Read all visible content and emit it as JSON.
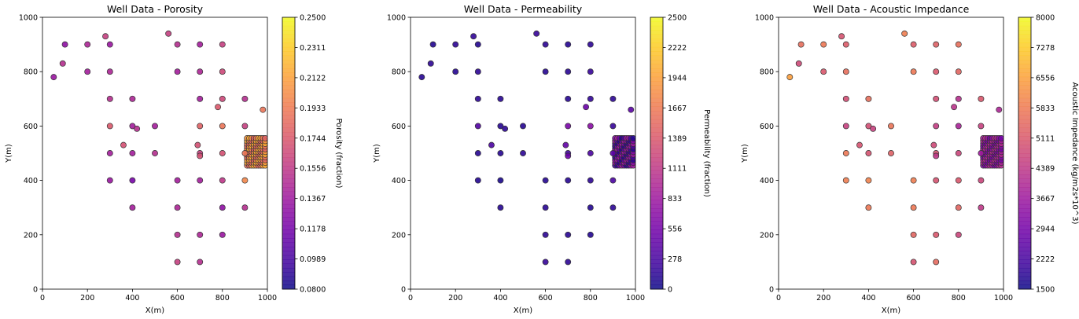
{
  "chart_data": [
    {
      "type": "scatter",
      "title": "Well Data - Porosity",
      "xlabel": "X(m)",
      "ylabel": "Y(m)",
      "xlim": [
        0,
        1000
      ],
      "ylim": [
        0,
        1000
      ],
      "xticks": [
        "0",
        "200",
        "400",
        "600",
        "800",
        "1000"
      ],
      "yticks": [
        "0",
        "200",
        "400",
        "600",
        "800",
        "1000"
      ],
      "colorbar": {
        "label": "Porosity (fraction)",
        "range": [
          0.08,
          0.25
        ],
        "ticks": [
          "0.0800",
          "0.0989",
          "0.1178",
          "0.1367",
          "0.1556",
          "0.1744",
          "0.1933",
          "0.2122",
          "0.2311",
          "0.2500"
        ],
        "colormap": "plasma"
      },
      "grid": false,
      "points": [
        {
          "x": 50,
          "y": 780,
          "c": 0.135
        },
        {
          "x": 90,
          "y": 830,
          "c": 0.15
        },
        {
          "x": 100,
          "y": 900,
          "c": 0.13
        },
        {
          "x": 200,
          "y": 900,
          "c": 0.145
        },
        {
          "x": 200,
          "y": 800,
          "c": 0.14
        },
        {
          "x": 280,
          "y": 930,
          "c": 0.16
        },
        {
          "x": 300,
          "y": 900,
          "c": 0.135
        },
        {
          "x": 300,
          "y": 800,
          "c": 0.145
        },
        {
          "x": 300,
          "y": 700,
          "c": 0.15
        },
        {
          "x": 300,
          "y": 600,
          "c": 0.175
        },
        {
          "x": 300,
          "y": 500,
          "c": 0.14
        },
        {
          "x": 300,
          "y": 400,
          "c": 0.135
        },
        {
          "x": 400,
          "y": 700,
          "c": 0.145
        },
        {
          "x": 400,
          "y": 600,
          "c": 0.14
        },
        {
          "x": 400,
          "y": 500,
          "c": 0.14
        },
        {
          "x": 400,
          "y": 400,
          "c": 0.12
        },
        {
          "x": 400,
          "y": 300,
          "c": 0.14
        },
        {
          "x": 420,
          "y": 590,
          "c": 0.15
        },
        {
          "x": 360,
          "y": 530,
          "c": 0.17
        },
        {
          "x": 500,
          "y": 600,
          "c": 0.14
        },
        {
          "x": 500,
          "y": 500,
          "c": 0.15
        },
        {
          "x": 560,
          "y": 940,
          "c": 0.16
        },
        {
          "x": 600,
          "y": 900,
          "c": 0.15
        },
        {
          "x": 600,
          "y": 800,
          "c": 0.14
        },
        {
          "x": 600,
          "y": 400,
          "c": 0.14
        },
        {
          "x": 600,
          "y": 300,
          "c": 0.145
        },
        {
          "x": 600,
          "y": 200,
          "c": 0.15
        },
        {
          "x": 600,
          "y": 100,
          "c": 0.16
        },
        {
          "x": 700,
          "y": 900,
          "c": 0.14
        },
        {
          "x": 700,
          "y": 800,
          "c": 0.145
        },
        {
          "x": 700,
          "y": 700,
          "c": 0.14
        },
        {
          "x": 700,
          "y": 600,
          "c": 0.18
        },
        {
          "x": 700,
          "y": 500,
          "c": 0.16
        },
        {
          "x": 700,
          "y": 490,
          "c": 0.17
        },
        {
          "x": 690,
          "y": 530,
          "c": 0.17
        },
        {
          "x": 700,
          "y": 400,
          "c": 0.14
        },
        {
          "x": 700,
          "y": 200,
          "c": 0.145
        },
        {
          "x": 700,
          "y": 100,
          "c": 0.15
        },
        {
          "x": 780,
          "y": 670,
          "c": 0.175
        },
        {
          "x": 800,
          "y": 900,
          "c": 0.16
        },
        {
          "x": 800,
          "y": 800,
          "c": 0.165
        },
        {
          "x": 800,
          "y": 700,
          "c": 0.165
        },
        {
          "x": 800,
          "y": 600,
          "c": 0.19
        },
        {
          "x": 800,
          "y": 500,
          "c": 0.17
        },
        {
          "x": 800,
          "y": 400,
          "c": 0.155
        },
        {
          "x": 800,
          "y": 300,
          "c": 0.13
        },
        {
          "x": 800,
          "y": 200,
          "c": 0.135
        },
        {
          "x": 900,
          "y": 700,
          "c": 0.15
        },
        {
          "x": 900,
          "y": 600,
          "c": 0.16
        },
        {
          "x": 900,
          "y": 500,
          "c": 0.19
        },
        {
          "x": 900,
          "y": 400,
          "c": 0.2
        },
        {
          "x": 900,
          "y": 300,
          "c": 0.15
        },
        {
          "x": 980,
          "y": 660,
          "c": 0.19
        }
      ],
      "grid_block": {
        "x_range": [
          910,
          990
        ],
        "y_range": [
          455,
          560
        ],
        "step": 10,
        "c_range": [
          0.18,
          0.22
        ]
      }
    },
    {
      "type": "scatter",
      "title": "Well Data - Permeability",
      "xlabel": "X(m)",
      "ylabel": "Y(m)",
      "xlim": [
        0,
        1000
      ],
      "ylim": [
        0,
        1000
      ],
      "xticks": [
        "0",
        "200",
        "400",
        "600",
        "800",
        "1000"
      ],
      "yticks": [
        "0",
        "200",
        "400",
        "600",
        "800",
        "1000"
      ],
      "colorbar": {
        "label": "Permeability (fraction)",
        "range": [
          0,
          2500
        ],
        "ticks": [
          "0",
          "278",
          "556",
          "833",
          "1111",
          "1389",
          "1667",
          "1944",
          "2222",
          "2500"
        ],
        "colormap": "plasma"
      },
      "grid": false,
      "points": [
        {
          "x": 50,
          "y": 780,
          "c": 120
        },
        {
          "x": 90,
          "y": 830,
          "c": 150
        },
        {
          "x": 100,
          "y": 900,
          "c": 100
        },
        {
          "x": 200,
          "y": 900,
          "c": 150
        },
        {
          "x": 200,
          "y": 800,
          "c": 120
        },
        {
          "x": 280,
          "y": 930,
          "c": 180
        },
        {
          "x": 300,
          "y": 900,
          "c": 100
        },
        {
          "x": 300,
          "y": 800,
          "c": 150
        },
        {
          "x": 300,
          "y": 700,
          "c": 150
        },
        {
          "x": 300,
          "y": 600,
          "c": 350
        },
        {
          "x": 300,
          "y": 500,
          "c": 120
        },
        {
          "x": 300,
          "y": 400,
          "c": 100
        },
        {
          "x": 400,
          "y": 700,
          "c": 130
        },
        {
          "x": 400,
          "y": 600,
          "c": 120
        },
        {
          "x": 400,
          "y": 500,
          "c": 120
        },
        {
          "x": 400,
          "y": 400,
          "c": 60
        },
        {
          "x": 400,
          "y": 300,
          "c": 120
        },
        {
          "x": 420,
          "y": 590,
          "c": 150
        },
        {
          "x": 360,
          "y": 530,
          "c": 300
        },
        {
          "x": 500,
          "y": 600,
          "c": 120
        },
        {
          "x": 500,
          "y": 500,
          "c": 150
        },
        {
          "x": 560,
          "y": 940,
          "c": 200
        },
        {
          "x": 600,
          "y": 900,
          "c": 150
        },
        {
          "x": 600,
          "y": 800,
          "c": 120
        },
        {
          "x": 600,
          "y": 400,
          "c": 120
        },
        {
          "x": 600,
          "y": 300,
          "c": 130
        },
        {
          "x": 600,
          "y": 200,
          "c": 150
        },
        {
          "x": 600,
          "y": 100,
          "c": 200
        },
        {
          "x": 700,
          "y": 900,
          "c": 120
        },
        {
          "x": 700,
          "y": 800,
          "c": 130
        },
        {
          "x": 700,
          "y": 700,
          "c": 120
        },
        {
          "x": 700,
          "y": 600,
          "c": 600
        },
        {
          "x": 700,
          "y": 500,
          "c": 250
        },
        {
          "x": 700,
          "y": 490,
          "c": 500
        },
        {
          "x": 690,
          "y": 530,
          "c": 450
        },
        {
          "x": 700,
          "y": 400,
          "c": 120
        },
        {
          "x": 700,
          "y": 200,
          "c": 130
        },
        {
          "x": 700,
          "y": 100,
          "c": 150
        },
        {
          "x": 780,
          "y": 670,
          "c": 500
        },
        {
          "x": 800,
          "y": 900,
          "c": 150
        },
        {
          "x": 800,
          "y": 800,
          "c": 200
        },
        {
          "x": 800,
          "y": 700,
          "c": 180
        },
        {
          "x": 800,
          "y": 600,
          "c": 700
        },
        {
          "x": 800,
          "y": 500,
          "c": 300
        },
        {
          "x": 800,
          "y": 400,
          "c": 150
        },
        {
          "x": 800,
          "y": 300,
          "c": 100
        },
        {
          "x": 800,
          "y": 200,
          "c": 100
        },
        {
          "x": 900,
          "y": 700,
          "c": 150
        },
        {
          "x": 900,
          "y": 600,
          "c": 200
        },
        {
          "x": 900,
          "y": 500,
          "c": 400
        },
        {
          "x": 900,
          "y": 400,
          "c": 300
        },
        {
          "x": 900,
          "y": 300,
          "c": 150
        },
        {
          "x": 980,
          "y": 660,
          "c": 400
        }
      ],
      "grid_block": {
        "x_range": [
          910,
          990
        ],
        "y_range": [
          455,
          560
        ],
        "step": 10,
        "c_range": [
          100,
          900
        ]
      }
    },
    {
      "type": "scatter",
      "title": "Well Data - Acoustic Impedance",
      "xlabel": "X(m)",
      "ylabel": "Y(m)",
      "xlim": [
        0,
        1000
      ],
      "ylim": [
        0,
        1000
      ],
      "xticks": [
        "0",
        "200",
        "400",
        "600",
        "800",
        "1000"
      ],
      "yticks": [
        "0",
        "200",
        "400",
        "600",
        "800",
        "1000"
      ],
      "colorbar": {
        "label": "Acoustic Impedance (kg/m2s*10^3)",
        "range": [
          1500,
          8000
        ],
        "ticks": [
          "1500",
          "2222",
          "2944",
          "3667",
          "4389",
          "5111",
          "5833",
          "6556",
          "7278",
          "8000"
        ],
        "colormap": "plasma"
      },
      "grid": false,
      "points": [
        {
          "x": 50,
          "y": 780,
          "c": 6500
        },
        {
          "x": 90,
          "y": 830,
          "c": 4800
        },
        {
          "x": 100,
          "y": 900,
          "c": 5600
        },
        {
          "x": 200,
          "y": 900,
          "c": 5800
        },
        {
          "x": 200,
          "y": 800,
          "c": 5100
        },
        {
          "x": 280,
          "y": 930,
          "c": 5000
        },
        {
          "x": 300,
          "y": 900,
          "c": 5200
        },
        {
          "x": 300,
          "y": 800,
          "c": 5600
        },
        {
          "x": 300,
          "y": 700,
          "c": 4900
        },
        {
          "x": 300,
          "y": 600,
          "c": 4600
        },
        {
          "x": 300,
          "y": 500,
          "c": 5800
        },
        {
          "x": 300,
          "y": 400,
          "c": 5900
        },
        {
          "x": 400,
          "y": 700,
          "c": 5600
        },
        {
          "x": 400,
          "y": 600,
          "c": 4900
        },
        {
          "x": 400,
          "y": 500,
          "c": 5000
        },
        {
          "x": 400,
          "y": 400,
          "c": 6000
        },
        {
          "x": 400,
          "y": 300,
          "c": 5800
        },
        {
          "x": 420,
          "y": 590,
          "c": 4600
        },
        {
          "x": 360,
          "y": 530,
          "c": 5000
        },
        {
          "x": 500,
          "y": 600,
          "c": 5700
        },
        {
          "x": 500,
          "y": 500,
          "c": 5300
        },
        {
          "x": 560,
          "y": 940,
          "c": 5900
        },
        {
          "x": 600,
          "y": 900,
          "c": 5200
        },
        {
          "x": 600,
          "y": 800,
          "c": 5800
        },
        {
          "x": 600,
          "y": 400,
          "c": 5900
        },
        {
          "x": 600,
          "y": 300,
          "c": 5800
        },
        {
          "x": 600,
          "y": 200,
          "c": 5400
        },
        {
          "x": 600,
          "y": 100,
          "c": 5000
        },
        {
          "x": 700,
          "y": 900,
          "c": 5300
        },
        {
          "x": 700,
          "y": 800,
          "c": 5100
        },
        {
          "x": 700,
          "y": 700,
          "c": 4900
        },
        {
          "x": 700,
          "y": 600,
          "c": 4500
        },
        {
          "x": 700,
          "y": 500,
          "c": 5000
        },
        {
          "x": 700,
          "y": 490,
          "c": 4400
        },
        {
          "x": 690,
          "y": 530,
          "c": 4800
        },
        {
          "x": 700,
          "y": 400,
          "c": 5000
        },
        {
          "x": 700,
          "y": 200,
          "c": 5100
        },
        {
          "x": 700,
          "y": 100,
          "c": 5500
        },
        {
          "x": 780,
          "y": 670,
          "c": 4300
        },
        {
          "x": 800,
          "y": 900,
          "c": 5600
        },
        {
          "x": 800,
          "y": 800,
          "c": 5400
        },
        {
          "x": 800,
          "y": 700,
          "c": 4200
        },
        {
          "x": 800,
          "y": 600,
          "c": 3900
        },
        {
          "x": 800,
          "y": 500,
          "c": 4700
        },
        {
          "x": 800,
          "y": 400,
          "c": 5100
        },
        {
          "x": 800,
          "y": 300,
          "c": 5400
        },
        {
          "x": 800,
          "y": 200,
          "c": 4700
        },
        {
          "x": 900,
          "y": 700,
          "c": 5100
        },
        {
          "x": 900,
          "y": 600,
          "c": 4600
        },
        {
          "x": 900,
          "y": 500,
          "c": 3700
        },
        {
          "x": 900,
          "y": 400,
          "c": 4700
        },
        {
          "x": 900,
          "y": 300,
          "c": 4400
        },
        {
          "x": 980,
          "y": 660,
          "c": 4000
        }
      ],
      "grid_block": {
        "x_range": [
          910,
          990
        ],
        "y_range": [
          455,
          560
        ],
        "step": 10,
        "c_range": [
          3000,
          4200
        ]
      }
    }
  ]
}
